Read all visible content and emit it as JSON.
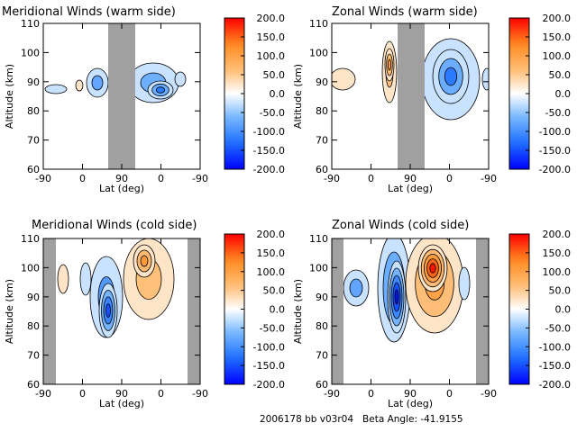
{
  "footer": "2006178 bb v03r04   Beta Angle: -41.9155",
  "colorbar": {
    "labels": [
      "200.0",
      "150.0",
      "100.0",
      "50.0",
      "0.0",
      "-50.0",
      "-100.0",
      "-150.0",
      "-200.0"
    ],
    "values": [
      200,
      150,
      100,
      50,
      0,
      -50,
      -100,
      -150,
      -200
    ],
    "range": [
      -200,
      200
    ],
    "colors": [
      "#0000ff",
      "#1f70ff",
      "#7cbaff",
      "#ffffff",
      "#ffc07a",
      "#ff8a20",
      "#ff0000"
    ]
  },
  "chart_data": [
    {
      "type": "heatmap",
      "title": "Meridional Winds (warm side)",
      "xlabel": "Lat (deg)",
      "ylabel": "Altitude (km)",
      "xticks": [
        "-90",
        "0",
        "90",
        "0",
        "-90"
      ],
      "yticks": [
        "60",
        "70",
        "80",
        "90",
        "100",
        "110"
      ],
      "ylim": [
        60,
        110
      ],
      "gaps": [
        [
          120,
          150
        ]
      ],
      "blobs": [
        {
          "cx": 108,
          "cy": 92,
          "rx": 12,
          "ry": 16,
          "v": -80
        },
        {
          "cx": 133,
          "cy": 96,
          "rx": 10,
          "ry": 14,
          "v": -60
        },
        {
          "cx": 170,
          "cy": 92,
          "rx": 28,
          "ry": 22,
          "v": -70
        },
        {
          "cx": 178,
          "cy": 100,
          "rx": 14,
          "ry": 10,
          "v": -120
        },
        {
          "cx": 62,
          "cy": 99,
          "rx": 12,
          "ry": 5,
          "v": -40
        },
        {
          "cx": 88,
          "cy": 95,
          "rx": 4,
          "ry": 6,
          "v": 40
        },
        {
          "cx": 200,
          "cy": 88,
          "rx": 6,
          "ry": 8,
          "v": -30
        }
      ]
    },
    {
      "type": "heatmap",
      "title": "Zonal Winds (warm side)",
      "xlabel": "Lat (deg)",
      "ylabel": "Altitude (km)",
      "xticks": [
        "-90",
        "0",
        "90",
        "0",
        "-90"
      ],
      "yticks": [
        "60",
        "70",
        "80",
        "90",
        "100",
        "110"
      ],
      "ylim": [
        60,
        110
      ],
      "gaps": [
        [
          441,
          471
        ]
      ],
      "blobs": [
        {
          "cx": 380,
          "cy": 88,
          "rx": 14,
          "ry": 12,
          "v": 50
        },
        {
          "cx": 432,
          "cy": 80,
          "rx": 8,
          "ry": 34,
          "v": 60
        },
        {
          "cx": 432,
          "cy": 72,
          "rx": 5,
          "ry": 18,
          "v": 110
        },
        {
          "cx": 500,
          "cy": 88,
          "rx": 32,
          "ry": 45,
          "v": -70
        },
        {
          "cx": 500,
          "cy": 85,
          "rx": 20,
          "ry": 30,
          "v": -120
        },
        {
          "cx": 540,
          "cy": 88,
          "rx": 5,
          "ry": 12,
          "v": -50
        }
      ]
    },
    {
      "type": "heatmap",
      "title": "Meridional Winds (cold side)",
      "xlabel": "Lat (deg)",
      "ylabel": "Altitude (km)",
      "xticks": [
        "-90",
        "0",
        "90",
        "0",
        "-90"
      ],
      "yticks": [
        "60",
        "70",
        "80",
        "90",
        "100",
        "110"
      ],
      "ylim": [
        60,
        110
      ],
      "gaps": [
        [
          48,
          62
        ],
        [
          208,
          222
        ]
      ],
      "blobs": [
        {
          "cx": 70,
          "cy": 310,
          "rx": 6,
          "ry": 16,
          "v": 40
        },
        {
          "cx": 118,
          "cy": 330,
          "rx": 18,
          "ry": 45,
          "v": -90
        },
        {
          "cx": 120,
          "cy": 345,
          "rx": 10,
          "ry": 30,
          "v": -150
        },
        {
          "cx": 165,
          "cy": 310,
          "rx": 28,
          "ry": 45,
          "v": 60
        },
        {
          "cx": 160,
          "cy": 290,
          "rx": 12,
          "ry": 18,
          "v": 110
        },
        {
          "cx": 95,
          "cy": 310,
          "rx": 6,
          "ry": 18,
          "v": -40
        }
      ]
    },
    {
      "type": "heatmap",
      "title": "Zonal Winds (cold side)",
      "xlabel": "Lat (deg)",
      "ylabel": "Altitude (km)",
      "xticks": [
        "-90",
        "0",
        "90",
        "0",
        "-90"
      ],
      "yticks": [
        "60",
        "70",
        "80",
        "90",
        "100",
        "110"
      ],
      "ylim": [
        60,
        110
      ],
      "gaps": [
        [
          368,
          381
        ],
        [
          528,
          542
        ]
      ],
      "blobs": [
        {
          "cx": 395,
          "cy": 320,
          "rx": 14,
          "ry": 20,
          "v": -80
        },
        {
          "cx": 437,
          "cy": 320,
          "rx": 18,
          "ry": 60,
          "v": -120
        },
        {
          "cx": 440,
          "cy": 330,
          "rx": 10,
          "ry": 40,
          "v": -190
        },
        {
          "cx": 482,
          "cy": 315,
          "rx": 32,
          "ry": 55,
          "v": 100
        },
        {
          "cx": 480,
          "cy": 298,
          "rx": 16,
          "ry": 26,
          "v": 190
        },
        {
          "cx": 515,
          "cy": 315,
          "rx": 6,
          "ry": 18,
          "v": -50
        }
      ]
    }
  ]
}
